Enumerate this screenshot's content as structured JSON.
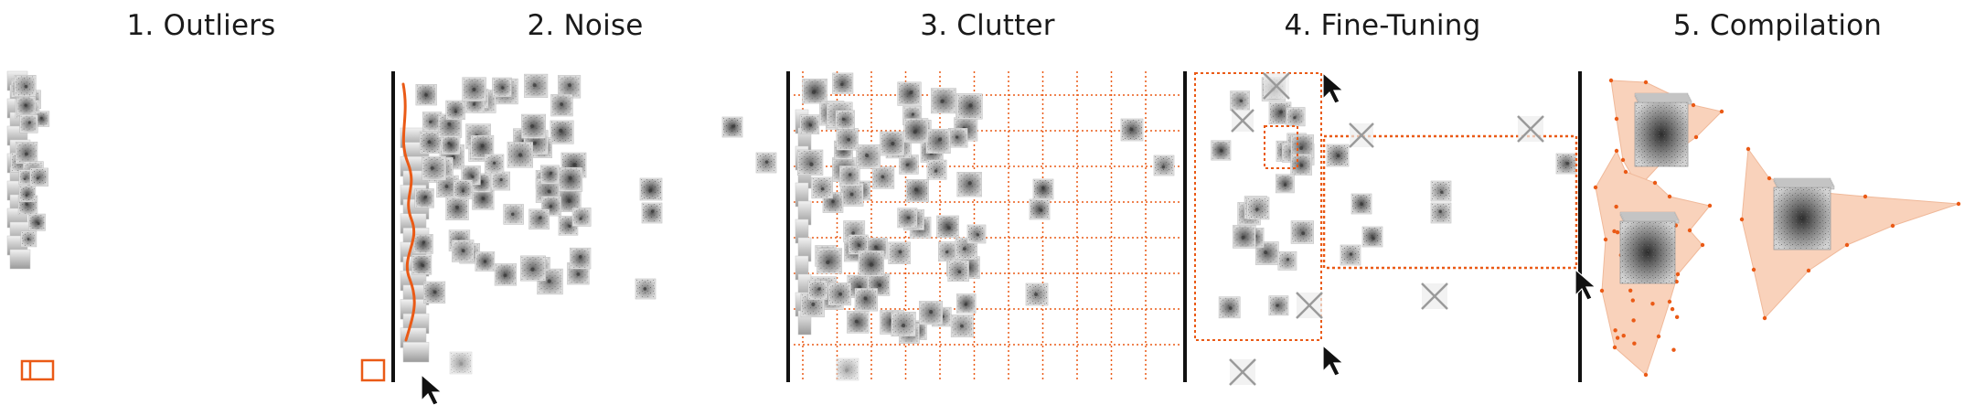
{
  "figure": {
    "panels": [
      {
        "id": "outliers",
        "title": "1. Outliers"
      },
      {
        "id": "noise",
        "title": "2. Noise"
      },
      {
        "id": "clutter",
        "title": "3. Clutter"
      },
      {
        "id": "fine_tuning",
        "title": "4. Fine-Tuning"
      },
      {
        "id": "compilation",
        "title": "5. Compilation"
      }
    ],
    "colors": {
      "accent": "#ea5a16",
      "hull_fill": "#f9d2bb",
      "divider": "#111111",
      "thumbnail_bg": "#e6e6e6",
      "thumbnail_dark": "#3a3a3a",
      "removed_mark": "#9a9a9a"
    },
    "icons": {
      "outliers_toggle": "sidebar-panel-icon",
      "noise_toggle": "square-outline-icon",
      "cursor": "mouse-pointer-icon",
      "removed": "x-mark-icon"
    },
    "grid": {
      "columns": 11,
      "rows": 8,
      "line_style": "dotted"
    },
    "compilation": {
      "cluster_count": 3
    }
  }
}
